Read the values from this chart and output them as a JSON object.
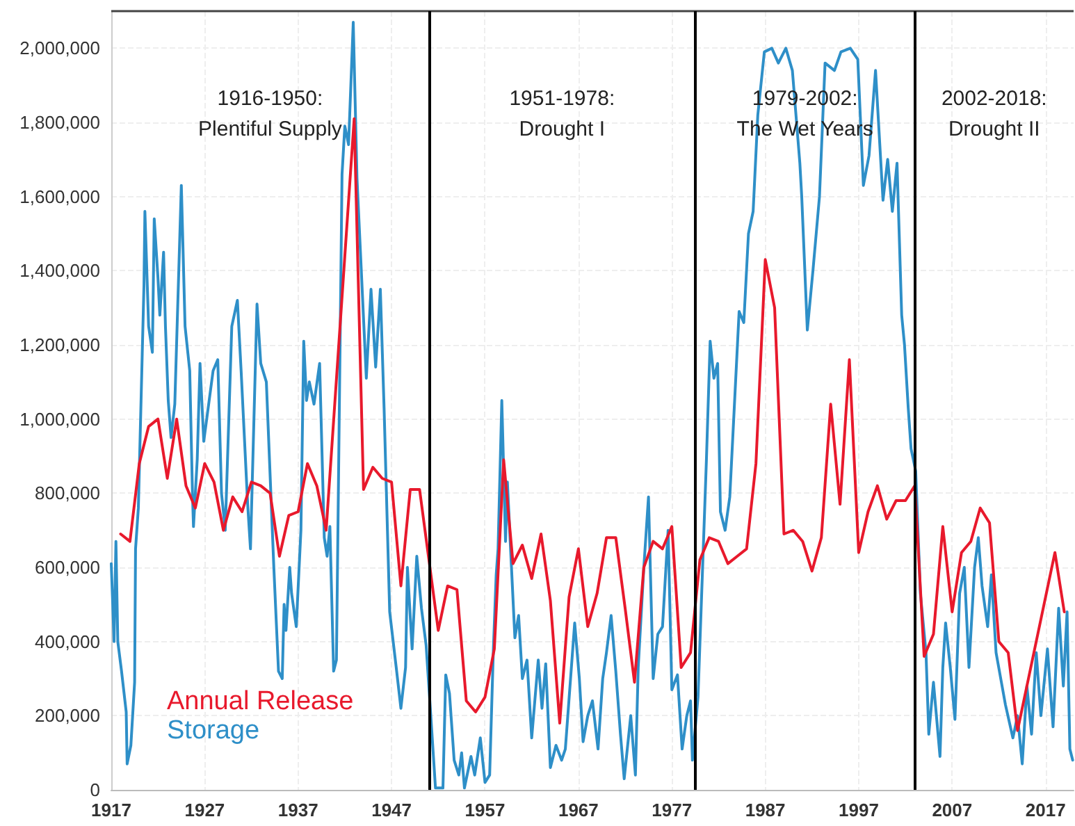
{
  "chart_data": {
    "type": "line",
    "annotations": [
      "1916-1950:\nPlentiful Supply",
      "1951-1978:\nDrought I",
      "1979-2002:\nThe Wet Years",
      "2002-2018:\nDrought II"
    ],
    "series": [
      {
        "name": "Storage",
        "color": "#2e8fc8",
        "x": [
          1917.0,
          1917.3,
          1917.5,
          1917.7,
          1918.1,
          1918.6,
          1918.7,
          1919.1,
          1919.5,
          1919.6,
          1919.9,
          1920.5,
          1920.6,
          1921.0,
          1921.4,
          1921.6,
          1922.0,
          1922.2,
          1922.6,
          1922.8,
          1923.1,
          1923.4,
          1923.8,
          1924.5,
          1924.9,
          1925.4,
          1925.7,
          1925.8,
          1926.2,
          1926.5,
          1926.9,
          1927.9,
          1928.4,
          1928.8,
          1929.2,
          1929.9,
          1930.5,
          1930.9,
          1931.6,
          1931.9,
          1932.6,
          1933.0,
          1933.6,
          1934.4,
          1934.9,
          1935.3,
          1935.5,
          1935.7,
          1936.1,
          1936.3,
          1936.8,
          1937.3,
          1937.6,
          1937.9,
          1938.2,
          1938.7,
          1939.3,
          1939.8,
          1940.1,
          1940.4,
          1940.8,
          1941.1,
          1941.7,
          1942.0,
          1942.4,
          1942.9,
          1943.3,
          1944.3,
          1944.8,
          1945.3,
          1945.8,
          1946.2,
          1946.8,
          1947.5,
          1948.0,
          1948.5,
          1948.7,
          1949.2,
          1949.7,
          1950.2,
          1950.7,
          1951.2,
          1951.7,
          1952.5,
          1952.8,
          1953.2,
          1953.7,
          1954.2,
          1954.5,
          1954.8,
          1955.5,
          1955.9,
          1956.5,
          1957.0,
          1957.5,
          1957.9,
          1958.2,
          1958.4,
          1958.8,
          1959.2,
          1959.4,
          1959.7,
          1960.2,
          1960.6,
          1961.0,
          1961.5,
          1962.0,
          1962.7,
          1963.1,
          1963.5,
          1964.0,
          1964.6,
          1965.2,
          1965.6,
          1966.1,
          1966.6,
          1967.1,
          1967.5,
          1968.0,
          1968.5,
          1969.1,
          1969.6,
          1970.0,
          1970.5,
          1971.0,
          1971.5,
          1971.9,
          1972.6,
          1973.1,
          1973.4,
          1974.0,
          1974.5,
          1975.0,
          1975.5,
          1976.0,
          1976.6,
          1977.0,
          1977.6,
          1978.1,
          1978.6,
          1979.0,
          1979.2,
          1979.8,
          1980.7,
          1981.1,
          1981.5,
          1981.9,
          1982.2,
          1982.7,
          1983.2,
          1984.2,
          1984.7,
          1985.2,
          1985.7,
          1986.2,
          1986.9,
          1987.7,
          1988.4,
          1989.2,
          1989.9,
          1990.7,
          1990.9,
          1991.5,
          1992.1,
          1992.8,
          1993.4,
          1994.4,
          1995.1,
          1996.1,
          1996.9,
          1997.5,
          1998.1,
          1998.8,
          1999.6,
          2000.1,
          2000.6,
          2001.1,
          2001.6,
          2001.9,
          2002.3,
          2002.6,
          2003.1,
          2003.6,
          2004.2,
          2004.5,
          2005.0,
          2005.7,
          2006.0,
          2006.3,
          2006.8,
          2007.3,
          2007.8,
          2008.3,
          2008.8,
          2009.4,
          2009.8,
          2010.2,
          2010.8,
          2011.2,
          2011.7,
          2012.2,
          2012.7,
          2013.5,
          2014.0,
          2014.5,
          2015.0,
          2015.5,
          2016.0,
          2016.5,
          2017.2,
          2017.8,
          2018.4,
          2018.9,
          2019.3,
          2019.6,
          2019.9
        ],
        "values": [
          610000,
          400000,
          670000,
          400000,
          320000,
          210000,
          70000,
          120000,
          290000,
          650000,
          760000,
          1360000,
          1560000,
          1250000,
          1180000,
          1540000,
          1380000,
          1280000,
          1450000,
          1250000,
          1050000,
          950000,
          1040000,
          1630000,
          1250000,
          1130000,
          790000,
          710000,
          890000,
          1150000,
          940000,
          1130000,
          1160000,
          800000,
          700000,
          1250000,
          1320000,
          1130000,
          770000,
          650000,
          1310000,
          1150000,
          1100000,
          600000,
          320000,
          300000,
          500000,
          430000,
          600000,
          530000,
          440000,
          700000,
          1210000,
          1050000,
          1100000,
          1040000,
          1150000,
          680000,
          630000,
          710000,
          320000,
          350000,
          1660000,
          1790000,
          1740000,
          2070000,
          1650000,
          1110000,
          1350000,
          1140000,
          1350000,
          1030000,
          480000,
          330000,
          220000,
          330000,
          600000,
          380000,
          630000,
          490000,
          390000,
          200000,
          5000,
          5000,
          310000,
          260000,
          80000,
          40000,
          100000,
          5000,
          90000,
          40000,
          140000,
          20000,
          40000,
          380000,
          580000,
          650000,
          1050000,
          670000,
          830000,
          670000,
          410000,
          470000,
          300000,
          350000,
          140000,
          350000,
          220000,
          340000,
          60000,
          120000,
          80000,
          110000,
          280000,
          450000,
          300000,
          130000,
          200000,
          240000,
          110000,
          300000,
          370000,
          470000,
          320000,
          150000,
          30000,
          200000,
          40000,
          330000,
          600000,
          790000,
          300000,
          420000,
          440000,
          700000,
          270000,
          310000,
          110000,
          200000,
          240000,
          80000,
          250000,
          890000,
          1210000,
          1110000,
          1150000,
          750000,
          700000,
          790000,
          1290000,
          1260000,
          1500000,
          1560000,
          1820000,
          1990000,
          2000000,
          1960000,
          2000000,
          1940000,
          1690000,
          1600000,
          1240000,
          1400000,
          1600000,
          1960000,
          1940000,
          1990000,
          2000000,
          1970000,
          1630000,
          1710000,
          1940000,
          1590000,
          1700000,
          1560000,
          1690000,
          1280000,
          1200000,
          1030000,
          920000,
          860000,
          530000,
          370000,
          150000,
          290000,
          90000,
          330000,
          450000,
          330000,
          190000,
          530000,
          600000,
          330000,
          600000,
          680000,
          550000,
          440000,
          580000,
          370000,
          300000,
          230000,
          140000,
          200000,
          70000,
          280000,
          150000,
          370000,
          200000,
          380000,
          170000,
          490000,
          280000,
          480000,
          110000,
          80000
        ]
      },
      {
        "name": "Annual Release",
        "color": "#e8192c",
        "x": [
          1918,
          1919,
          1920,
          1921,
          1922,
          1923,
          1924,
          1925,
          1926,
          1927,
          1928,
          1929,
          1930,
          1931,
          1932,
          1933,
          1934,
          1935,
          1936,
          1937,
          1938,
          1939,
          1940,
          1941,
          1942,
          1943,
          1944,
          1945,
          1946,
          1947,
          1948,
          1949,
          1950,
          1951,
          1952,
          1953,
          1954,
          1955,
          1956,
          1957,
          1958,
          1959,
          1960,
          1961,
          1962,
          1963,
          1964,
          1965,
          1966,
          1967,
          1968,
          1969,
          1970,
          1971,
          1972,
          1973,
          1974,
          1975,
          1976,
          1977,
          1978,
          1979,
          1980,
          1981,
          1982,
          1983,
          1984,
          1985,
          1986,
          1987,
          1988,
          1989,
          1990,
          1991,
          1992,
          1993,
          1994,
          1995,
          1996,
          1997,
          1998,
          1999,
          2000,
          2001,
          2002,
          2003,
          2004,
          2005,
          2006,
          2007,
          2008,
          2009,
          2010,
          2011,
          2012,
          2013,
          2014,
          2015,
          2016,
          2017,
          2018,
          2019
        ],
        "values": [
          690000,
          670000,
          880000,
          980000,
          1000000,
          840000,
          1000000,
          820000,
          760000,
          880000,
          830000,
          700000,
          790000,
          750000,
          830000,
          820000,
          800000,
          630000,
          740000,
          750000,
          880000,
          820000,
          700000,
          1070000,
          1440000,
          1810000,
          810000,
          870000,
          840000,
          830000,
          550000,
          810000,
          810000,
          620000,
          430000,
          550000,
          540000,
          240000,
          210000,
          250000,
          380000,
          890000,
          610000,
          660000,
          570000,
          690000,
          510000,
          180000,
          520000,
          650000,
          440000,
          530000,
          680000,
          680000,
          490000,
          290000,
          600000,
          670000,
          650000,
          710000,
          330000,
          370000,
          620000,
          680000,
          670000,
          610000,
          630000,
          650000,
          880000,
          1430000,
          1300000,
          690000,
          700000,
          670000,
          590000,
          680000,
          1040000,
          770000,
          1160000,
          640000,
          750000,
          820000,
          730000,
          780000,
          780000,
          820000,
          360000,
          420000,
          710000,
          480000,
          640000,
          670000,
          760000,
          720000,
          400000,
          370000,
          160000,
          280000,
          400000,
          520000,
          640000,
          480000
        ]
      }
    ],
    "xlim": [
      1917,
      2020
    ],
    "xticks": [
      1917,
      1927,
      1937,
      1947,
      1957,
      1967,
      1977,
      1987,
      1997,
      2007,
      2017
    ],
    "ylim": [
      0,
      2100000
    ],
    "yticks": [
      0,
      {
        "value": 200000,
        "label": "200,000"
      },
      {
        "value": 400000,
        "label": "400,000"
      },
      {
        "value": 600000,
        "label": "600,000"
      },
      {
        "value": 800000,
        "label": "800,000"
      },
      {
        "value": 1000000,
        "label": "1,000,000"
      },
      {
        "value": 1200000,
        "label": "1,200,000"
      },
      {
        "value": 1400000,
        "label": "1,400,000"
      },
      {
        "value": 1600000,
        "label": "1,600,000"
      },
      {
        "value": 1800000,
        "label": "1,800,000"
      },
      {
        "value": 2000000,
        "label": "2,000,000"
      }
    ],
    "ref_lines": [
      {
        "axis": "x",
        "value": 1951,
        "color": "#000000"
      },
      {
        "axis": "x",
        "value": 1979.5,
        "color": "#000000"
      },
      {
        "axis": "x",
        "value": 2003,
        "color": "#000000"
      }
    ],
    "grid": true,
    "legend": "bottom left",
    "marker": "none",
    "line_style": "solid"
  }
}
